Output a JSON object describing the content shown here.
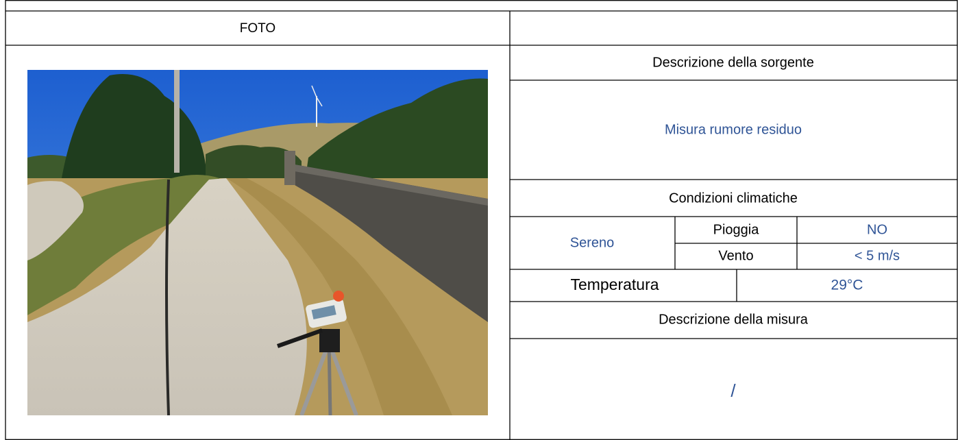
{
  "table": {
    "photo_label": "FOTO",
    "source_heading": "Descrizione della sorgente",
    "source_text": "Misura rumore residuo",
    "climate_heading": "Condizioni climatiche",
    "sky": "Sereno",
    "rain_label": "Pioggia",
    "rain_value": "NO",
    "wind_label": "Vento",
    "wind_value": "< 5 m/s",
    "temperature_label": "Temperatura",
    "temperature_value": "29°C",
    "measure_heading": "Descrizione della misura",
    "measure_text": "/"
  }
}
